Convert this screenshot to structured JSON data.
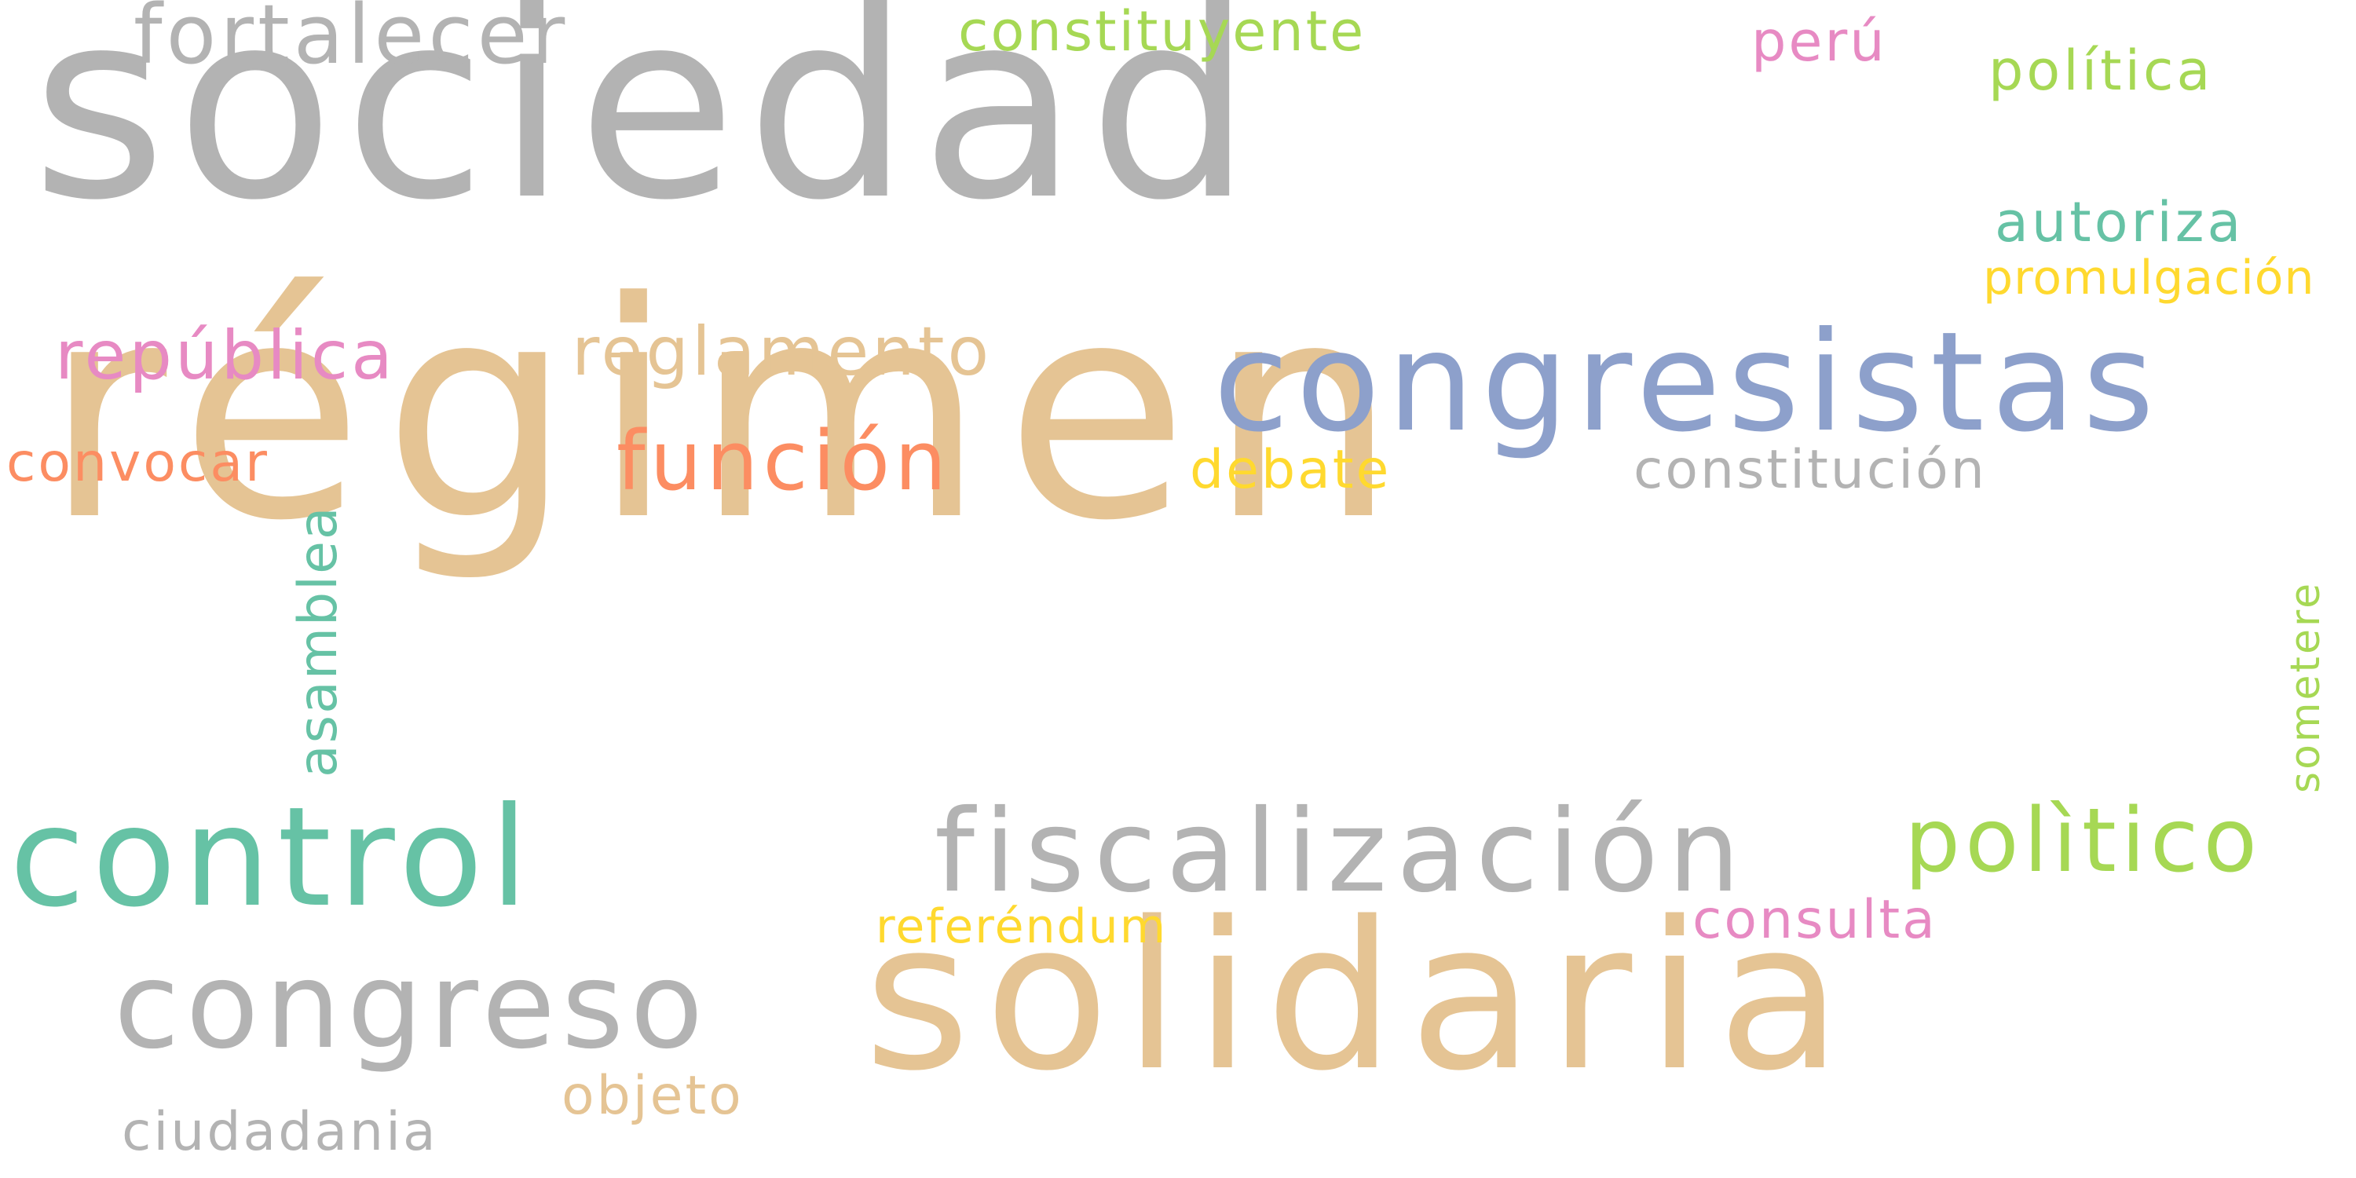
{
  "words": [
    {
      "key": "regimen",
      "text": "régimen",
      "color": "#e5c494"
    },
    {
      "key": "sociedad",
      "text": "sociedad",
      "color": "#b3b3b3"
    },
    {
      "key": "solidaria",
      "text": "solidaria",
      "color": "#e5c494"
    },
    {
      "key": "congresistas",
      "text": "congresistas",
      "color": "#8da0cb"
    },
    {
      "key": "control",
      "text": "control",
      "color": "#66c2a5"
    },
    {
      "key": "fiscalizacion",
      "text": "fiscalización",
      "color": "#b3b3b3"
    },
    {
      "key": "congreso",
      "text": "congreso",
      "color": "#b3b3b3"
    },
    {
      "key": "politico",
      "text": "polìtico",
      "color": "#a6d854"
    },
    {
      "key": "funcion",
      "text": "función",
      "color": "#fc8d62"
    },
    {
      "key": "fortalecer",
      "text": "fortalecer",
      "color": "#b3b3b3"
    },
    {
      "key": "reglamento",
      "text": "reglamento",
      "color": "#e5c494"
    },
    {
      "key": "republica",
      "text": "república",
      "color": "#e78ac3"
    },
    {
      "key": "constituyente",
      "text": "constituyente",
      "color": "#a6d854"
    },
    {
      "key": "politica",
      "text": "política",
      "color": "#a6d854"
    },
    {
      "key": "peru",
      "text": "perú",
      "color": "#e78ac3"
    },
    {
      "key": "autoriza",
      "text": "autoriza",
      "color": "#66c2a5"
    },
    {
      "key": "promulgacion",
      "text": "promulgación",
      "color": "#ffd92f"
    },
    {
      "key": "convocar",
      "text": "convocar",
      "color": "#fc8d62"
    },
    {
      "key": "debate",
      "text": "debate",
      "color": "#ffd92f"
    },
    {
      "key": "constitucion",
      "text": "constitución",
      "color": "#b3b3b3"
    },
    {
      "key": "asamblea",
      "text": "asamblea",
      "color": "#66c2a5"
    },
    {
      "key": "sometere",
      "text": "sometere",
      "color": "#a6d854"
    },
    {
      "key": "referendum",
      "text": "referéndum",
      "color": "#ffd92f"
    },
    {
      "key": "consulta",
      "text": "consulta",
      "color": "#e78ac3"
    },
    {
      "key": "objeto",
      "text": "objeto",
      "color": "#e5c494"
    },
    {
      "key": "ciudadania",
      "text": "ciudadania",
      "color": "#b3b3b3"
    }
  ]
}
